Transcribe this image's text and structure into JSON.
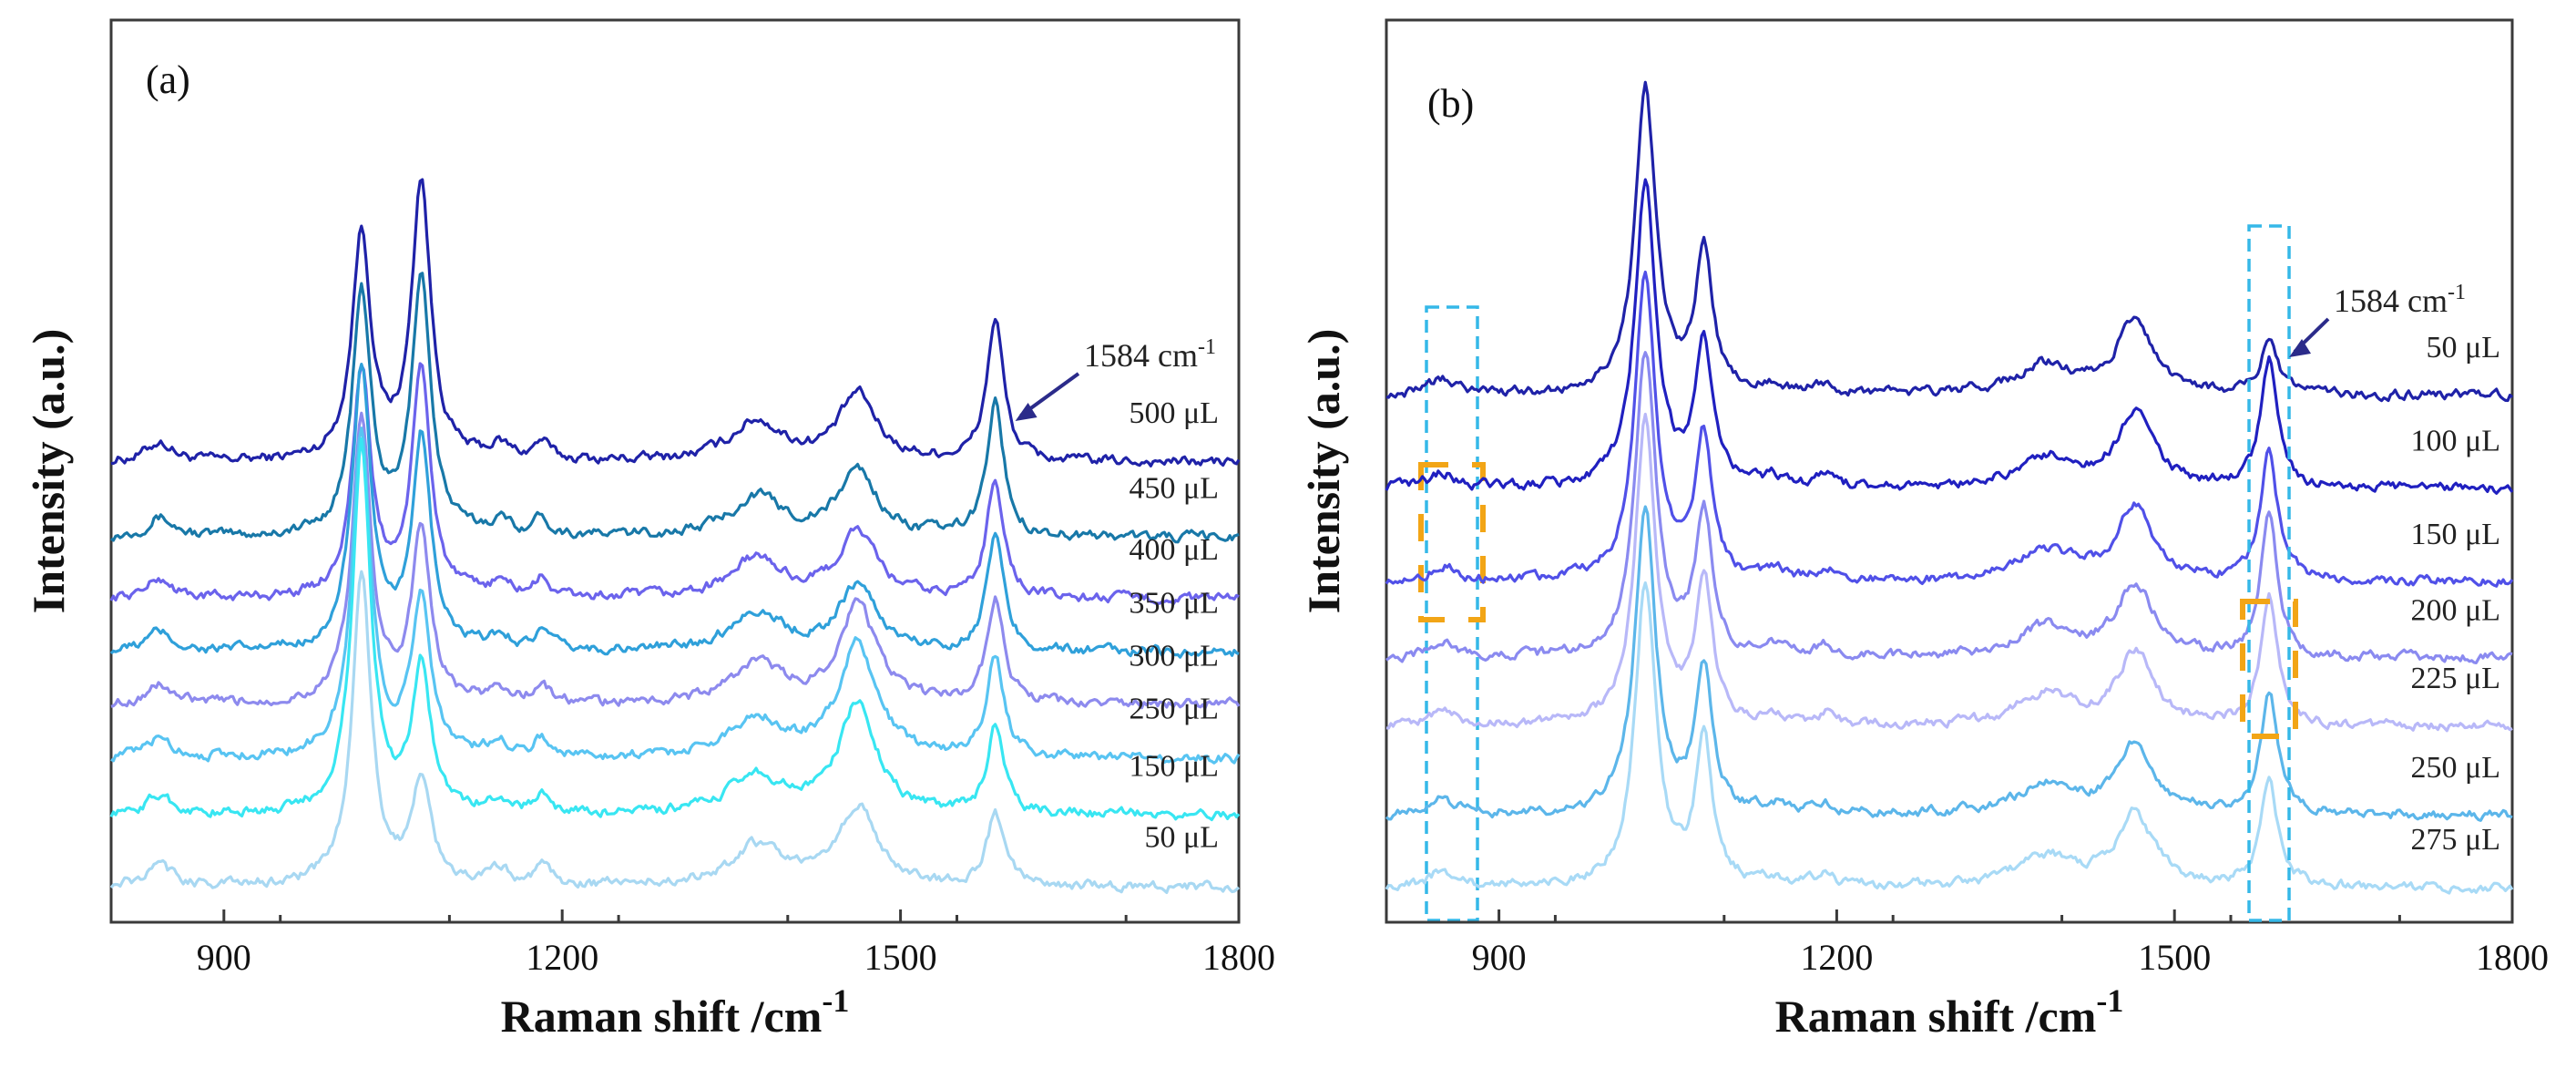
{
  "chart_data": [
    {
      "type": "line",
      "panel": "(a)",
      "xlabel": "Raman shift /cm",
      "xlabel_sup": "-1",
      "ylabel": "Intensity (a.u.)",
      "xlim": [
        800,
        1800
      ],
      "xticks": [
        "900",
        "1200",
        "1500",
        "1800"
      ],
      "annotation": {
        "text": "1584 cm",
        "sup": "-1",
        "x": 1584
      },
      "peaks": [
        {
          "x": 843,
          "h": 0.22,
          "w": 14
        },
        {
          "x": 1000,
          "h": 0.12,
          "w": 18
        },
        {
          "x": 1022,
          "h": 3.2,
          "w": 10
        },
        {
          "x": 1075,
          "h": 3.0,
          "w": 10
        },
        {
          "x": 1145,
          "h": 0.15,
          "w": 12
        },
        {
          "x": 1182,
          "h": 0.2,
          "w": 8
        },
        {
          "x": 1372,
          "h": 0.45,
          "w": 28
        },
        {
          "x": 1462,
          "h": 0.75,
          "w": 20
        },
        {
          "x": 1584,
          "h": 1.6,
          "w": 9
        }
      ],
      "series": [
        {
          "name": "500 μL",
          "color": "#1f22a8",
          "offset": 5.1,
          "peak_scale": [
            1.0,
            0,
            0.8,
            1.05,
            1.0,
            1.0,
            1.0,
            1.0,
            1.0
          ]
        },
        {
          "name": "450 μL",
          "color": "#1878a8",
          "offset": 4.25,
          "peak_scale": [
            1.0,
            0,
            0.85,
            0.98,
            1.0,
            1.0,
            1.0,
            1.0,
            0.95
          ]
        },
        {
          "name": "400 μL",
          "color": "#6b63ec",
          "offset": 3.55,
          "peak_scale": [
            1.0,
            0,
            0.8,
            0.85,
            1.0,
            1.0,
            1.0,
            1.0,
            0.85
          ]
        },
        {
          "name": "350 μL",
          "color": "#2fa0da",
          "offset": 2.95,
          "peak_scale": [
            1.0,
            0,
            1.0,
            0.8,
            1.0,
            1.0,
            1.0,
            1.0,
            0.82
          ]
        },
        {
          "name": "300 μL",
          "color": "#8d8aee",
          "offset": 2.35,
          "peak_scale": [
            1.0,
            0,
            1.0,
            0.65,
            1.0,
            1.0,
            1.0,
            1.5,
            0.75
          ]
        },
        {
          "name": "250 μL",
          "color": "#58c4f2",
          "offset": 1.75,
          "peak_scale": [
            1.0,
            0,
            1.15,
            0.6,
            1.0,
            1.0,
            1.0,
            1.7,
            0.7
          ]
        },
        {
          "name": "150 μL",
          "color": "#38e6f2",
          "offset": 1.1,
          "peak_scale": [
            1.0,
            0,
            1.3,
            0.55,
            1.0,
            1.0,
            1.0,
            1.7,
            0.6
          ]
        },
        {
          "name": "50 μL",
          "color": "#a8d8f2",
          "offset": 0.3,
          "peak_scale": [
            1.0,
            0,
            1.1,
            0.4,
            1.0,
            1.0,
            1.0,
            1.2,
            0.5
          ]
        }
      ]
    },
    {
      "type": "line",
      "panel": "(b)",
      "xlabel": "Raman shift /cm",
      "xlabel_sup": "-1",
      "ylabel": "Intensity (a.u.)",
      "xlim": [
        800,
        1800
      ],
      "xticks": [
        "900",
        "1200",
        "1500",
        "1800"
      ],
      "annotation": {
        "text": "1584 cm",
        "sup": "-1",
        "x": 1584
      },
      "peaks": [
        {
          "x": 850,
          "h": 0.18,
          "w": 14
        },
        {
          "x": 1000,
          "h": 0.12,
          "w": 18
        },
        {
          "x": 1030,
          "h": 3.6,
          "w": 11
        },
        {
          "x": 1082,
          "h": 1.7,
          "w": 9
        },
        {
          "x": 1145,
          "h": 0.1,
          "w": 12
        },
        {
          "x": 1190,
          "h": 0.12,
          "w": 10
        },
        {
          "x": 1385,
          "h": 0.35,
          "w": 30
        },
        {
          "x": 1465,
          "h": 0.85,
          "w": 20
        },
        {
          "x": 1584,
          "h": 0.75,
          "w": 9
        }
      ],
      "series": [
        {
          "name": "50 μL",
          "color": "#1f22a8",
          "offset": 6.1,
          "peak_scale": [
            1.0,
            0,
            1.0,
            1.0,
            1.0,
            1.0,
            1.0,
            1.0,
            0.8
          ]
        },
        {
          "name": "100 μL",
          "color": "#2020c0",
          "offset": 5.0,
          "peak_scale": [
            1.0,
            0,
            1.0,
            1.0,
            1.0,
            1.0,
            1.0,
            1.0,
            2.0
          ]
        },
        {
          "name": "150 μL",
          "color": "#5050e8",
          "offset": 3.9,
          "peak_scale": [
            1.0,
            0,
            1.0,
            1.0,
            1.0,
            1.0,
            1.0,
            1.0,
            2.1
          ]
        },
        {
          "name": "200 μL",
          "color": "#8a8af0",
          "offset": 3.0,
          "peak_scale": [
            1.0,
            0,
            1.0,
            1.0,
            1.0,
            1.0,
            1.0,
            1.0,
            2.2
          ]
        },
        {
          "name": "225 μL",
          "color": "#b8b8f8",
          "offset": 2.2,
          "peak_scale": [
            1.0,
            0,
            1.0,
            1.0,
            1.0,
            1.0,
            1.0,
            1.0,
            2.0
          ]
        },
        {
          "name": "250 μL",
          "color": "#5cb6ea",
          "offset": 1.15,
          "peak_scale": [
            1.0,
            0,
            1.0,
            1.0,
            1.0,
            1.0,
            1.0,
            1.0,
            1.9
          ]
        },
        {
          "name": "275 μL",
          "color": "#a8daf6",
          "offset": 0.3,
          "peak_scale": [
            1.0,
            0,
            1.0,
            1.0,
            1.0,
            1.0,
            1.0,
            1.0,
            1.7
          ]
        }
      ]
    }
  ]
}
